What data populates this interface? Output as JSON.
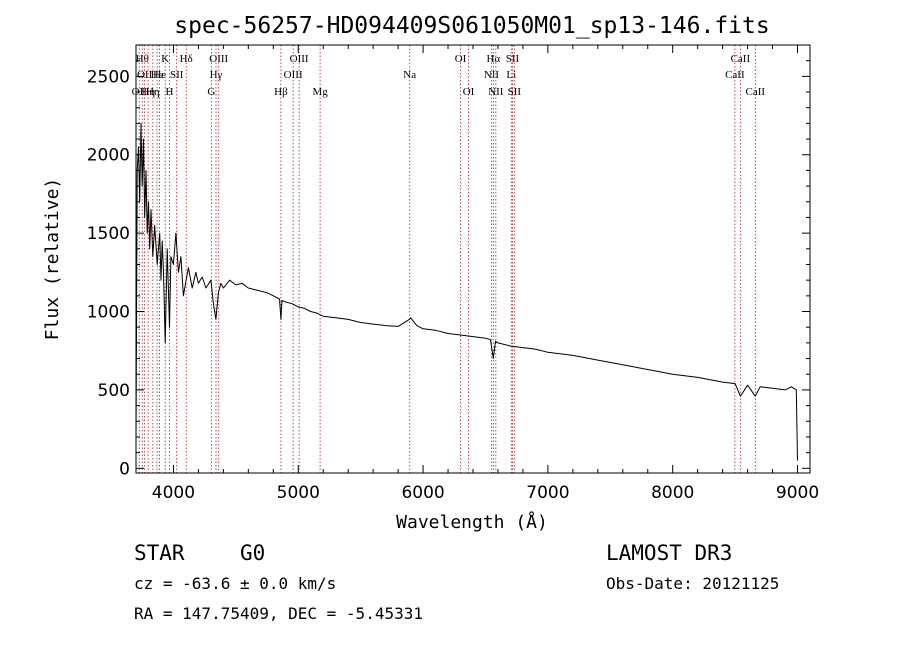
{
  "chart_data": {
    "type": "line",
    "title": "spec-56257-HD094409S061050M01_sp13-146.fits",
    "xlabel": "Wavelength (Å)",
    "ylabel": "Flux (relative)",
    "xlim": [
      3700,
      9100
    ],
    "ylim": [
      -30,
      2700
    ],
    "xticks": [
      4000,
      5000,
      6000,
      7000,
      8000,
      9000
    ],
    "yticks": [
      0,
      500,
      1000,
      1500,
      2000,
      2500
    ],
    "series": [
      {
        "name": "flux",
        "x": [
          3700,
          3710,
          3720,
          3730,
          3740,
          3750,
          3760,
          3770,
          3780,
          3790,
          3800,
          3810,
          3820,
          3835,
          3850,
          3870,
          3890,
          3900,
          3910,
          3920,
          3934,
          3950,
          3968,
          3980,
          4000,
          4020,
          4040,
          4060,
          4080,
          4101,
          4120,
          4150,
          4180,
          4200,
          4230,
          4260,
          4300,
          4320,
          4340,
          4360,
          4380,
          4400,
          4450,
          4500,
          4550,
          4600,
          4650,
          4700,
          4750,
          4800,
          4850,
          4861,
          4870,
          4900,
          4950,
          5000,
          5050,
          5100,
          5150,
          5175,
          5200,
          5300,
          5400,
          5500,
          5600,
          5700,
          5800,
          5890,
          5900,
          5950,
          6000,
          6100,
          6200,
          6300,
          6400,
          6500,
          6540,
          6563,
          6580,
          6600,
          6700,
          6800,
          6900,
          7000,
          7200,
          7400,
          7600,
          7800,
          8000,
          8200,
          8400,
          8500,
          8542,
          8600,
          8662,
          8700,
          8800,
          8900,
          8950,
          8990,
          9000
        ],
        "y": [
          150,
          1900,
          2050,
          1700,
          2200,
          1800,
          2100,
          1600,
          1900,
          1500,
          1700,
          1400,
          1650,
          1350,
          1550,
          1300,
          1500,
          1200,
          1450,
          1250,
          800,
          1400,
          900,
          1350,
          1300,
          1500,
          1250,
          1350,
          1100,
          1200,
          1280,
          1150,
          1250,
          1180,
          1220,
          1150,
          1200,
          1050,
          950,
          1120,
          1180,
          1150,
          1200,
          1170,
          1180,
          1150,
          1140,
          1130,
          1120,
          1100,
          1080,
          950,
          1070,
          1060,
          1050,
          1030,
          1020,
          1000,
          990,
          980,
          970,
          960,
          950,
          930,
          920,
          910,
          905,
          950,
          960,
          910,
          890,
          880,
          860,
          850,
          840,
          830,
          820,
          700,
          810,
          800,
          780,
          770,
          760,
          740,
          720,
          690,
          660,
          630,
          600,
          580,
          550,
          540,
          460,
          530,
          460,
          520,
          510,
          500,
          520,
          500,
          50
        ]
      }
    ],
    "lines": [
      {
        "wl": 3726,
        "label": "OII",
        "row": 3
      },
      {
        "wl": 3750,
        "label": "Hθ",
        "row": 1
      },
      {
        "wl": 3769,
        "label": "OII",
        "row": 2
      },
      {
        "wl": 3797,
        "label": "Hη",
        "row": 3
      },
      {
        "wl": 3835,
        "label": "Hη",
        "row": 3
      },
      {
        "wl": 3869,
        "label": "He",
        "row": 2
      },
      {
        "wl": 3889,
        "label": "He",
        "row": 2
      },
      {
        "wl": 3934,
        "label": "K",
        "row": 1
      },
      {
        "wl": 3968,
        "label": "H",
        "row": 3
      },
      {
        "wl": 4026,
        "label": "SII",
        "row": 2
      },
      {
        "wl": 4102,
        "label": "Hδ",
        "row": 1
      },
      {
        "wl": 4304,
        "label": "G",
        "row": 3
      },
      {
        "wl": 4341,
        "label": "Hγ",
        "row": 2
      },
      {
        "wl": 4363,
        "label": "OIII",
        "row": 1
      },
      {
        "wl": 4861,
        "label": "Hβ",
        "row": 3
      },
      {
        "wl": 4959,
        "label": "OIII",
        "row": 2
      },
      {
        "wl": 5007,
        "label": "OIII",
        "row": 1
      },
      {
        "wl": 5175,
        "label": "Mg",
        "row": 3
      },
      {
        "wl": 5893,
        "label": "Na",
        "row": 2
      },
      {
        "wl": 6300,
        "label": "OI",
        "row": 1
      },
      {
        "wl": 6364,
        "label": "OI",
        "row": 3
      },
      {
        "wl": 6548,
        "label": "NII",
        "row": 2
      },
      {
        "wl": 6563,
        "label": "Hα",
        "row": 1
      },
      {
        "wl": 6583,
        "label": "NII",
        "row": 3
      },
      {
        "wl": 6707,
        "label": "Li",
        "row": 2
      },
      {
        "wl": 6716,
        "label": "SII",
        "row": 1
      },
      {
        "wl": 6731,
        "label": "SII",
        "row": 3
      },
      {
        "wl": 8498,
        "label": "CaII",
        "row": 2
      },
      {
        "wl": 8542,
        "label": "CaII",
        "row": 1
      },
      {
        "wl": 8662,
        "label": "CaII",
        "row": 3
      }
    ]
  },
  "info": {
    "class_label": "STAR",
    "subclass": "G0",
    "survey": "LAMOST DR3",
    "cz_text": "cz = -63.6 ± 0.0 km/s",
    "obs_date_text": "Obs-Date: 20121125",
    "radec_text": "RA = 147.75409, DEC =  -5.45331"
  }
}
